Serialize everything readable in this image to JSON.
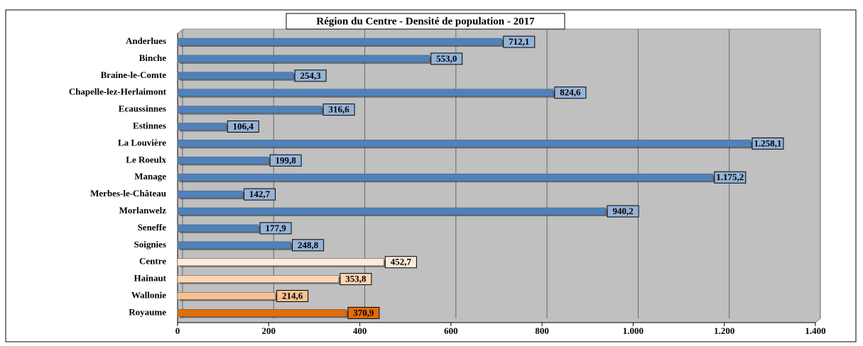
{
  "chart_data": {
    "type": "bar",
    "orientation": "horizontal",
    "title": "Région du Centre - Densité de population - 2017",
    "categories": [
      "Anderlues",
      "Binche",
      "Braine-le-Comte",
      "Chapelle-lez-Herlaimont",
      "Ecaussinnes",
      "Estinnes",
      "La Louvière",
      "Le Roeulx",
      "Manage",
      "Merbes-le-Château",
      "Morlanwelz",
      "Seneffe",
      "Soignies",
      "Centre",
      "Hainaut",
      "Wallonie",
      "Royaume"
    ],
    "values": [
      712.1,
      553.0,
      254.3,
      824.6,
      316.6,
      106.4,
      1258.1,
      199.8,
      1175.2,
      142.7,
      940.2,
      177.9,
      248.8,
      452.7,
      353.8,
      214.6,
      370.9
    ],
    "value_labels": [
      "712,1",
      "553,0",
      "254,3",
      "824,6",
      "316,6",
      "106,4",
      "1.258,1",
      "199,8",
      "1.175,2",
      "142,7",
      "940,2",
      "177,9",
      "248,8",
      "452,7",
      "353,8",
      "214,6",
      "370,9"
    ],
    "colors": [
      "#4f81bd",
      "#4f81bd",
      "#4f81bd",
      "#4f81bd",
      "#4f81bd",
      "#4f81bd",
      "#4f81bd",
      "#4f81bd",
      "#4f81bd",
      "#4f81bd",
      "#4f81bd",
      "#4f81bd",
      "#4f81bd",
      "#fdeada",
      "#fcd5b4",
      "#fac090",
      "#e46c0a"
    ],
    "label_colors": [
      "#95b3d7",
      "#95b3d7",
      "#95b3d7",
      "#95b3d7",
      "#95b3d7",
      "#95b3d7",
      "#95b3d7",
      "#95b3d7",
      "#95b3d7",
      "#95b3d7",
      "#95b3d7",
      "#95b3d7",
      "#95b3d7",
      "#fdeada",
      "#fcd5b4",
      "#fac090",
      "#e46c0a"
    ],
    "xlim": [
      0,
      1400
    ],
    "xticks": [
      0,
      200,
      400,
      600,
      800,
      {
        "value": 1000,
        "label": "1.000"
      },
      {
        "value": 1200,
        "label": "1.200"
      },
      {
        "value": 1400,
        "label": "1.400"
      }
    ],
    "grid": true
  }
}
